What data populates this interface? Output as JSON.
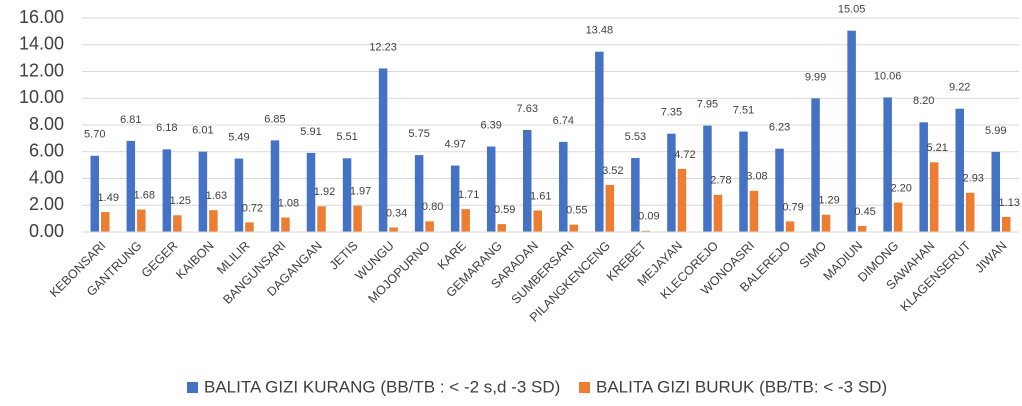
{
  "chart_data": {
    "type": "bar",
    "categories": [
      "KEBONSARI",
      "GANTRUNG",
      "GEGER",
      "KAIBON",
      "MLILIR",
      "BANGUNSARI",
      "DAGANGAN",
      "JETIS",
      "WUNGU",
      "MOJOPURNO",
      "KARE",
      "GEMARANG",
      "SARADAN",
      "SUMBERSARI",
      "PILANGKENCENG",
      "KREBET",
      "MEJAYAN",
      "KLECOREJO",
      "WONOASRI",
      "BALEREJO",
      "SIMO",
      "MADIUN",
      "DIMONG",
      "SAWAHAN",
      "KLAGENSERUT",
      "JIWAN"
    ],
    "series": [
      {
        "name": "BALITA GIZI KURANG (BB/TB : < -2 s,d -3 SD)",
        "color": "#4472c4",
        "values": [
          5.7,
          6.81,
          6.18,
          6.01,
          5.49,
          6.85,
          5.91,
          5.51,
          12.23,
          5.75,
          4.97,
          6.39,
          7.63,
          6.74,
          13.48,
          5.53,
          7.35,
          7.95,
          7.51,
          6.23,
          9.99,
          15.05,
          10.06,
          8.2,
          9.22,
          5.99
        ],
        "value_labels": [
          "5.70",
          "6.81",
          "6.18",
          "6.01",
          "5.49",
          "6.85",
          "5.91",
          "5.51",
          "12.23",
          "5.75",
          "4.97",
          "6.39",
          "7.63",
          "6.74",
          "13.48",
          "5.53",
          "7.35",
          "7.95",
          "7.51",
          "6.23",
          "9.99",
          "15.05",
          "10.06",
          "8.20",
          "9.22",
          "5.99"
        ]
      },
      {
        "name": "BALITA GIZI BURUK (BB/TB: < -3 SD)",
        "color": "#ed7d31",
        "values": [
          1.49,
          1.68,
          1.25,
          1.63,
          0.72,
          1.08,
          1.92,
          1.97,
          0.34,
          0.8,
          1.71,
          0.59,
          1.61,
          0.55,
          3.52,
          0.09,
          4.72,
          2.78,
          3.08,
          0.79,
          1.29,
          0.45,
          2.2,
          5.21,
          2.93,
          1.13
        ],
        "value_labels": [
          "1.49",
          "1.68",
          "1.25",
          "1.63",
          "0.72",
          "1.08",
          "1.92",
          "1.97",
          "0.34",
          "0.80",
          "1.71",
          "0.59",
          "1.61",
          "0.55",
          "3.52",
          "0.09",
          "4.72",
          "2.78",
          "3.08",
          "0.79",
          "1.29",
          "0.45",
          "2.20",
          "5.21",
          "2.93",
          "1.13"
        ]
      }
    ],
    "ylim": [
      0,
      16
    ],
    "yticks": [
      {
        "value": 0,
        "label": "0.00"
      },
      {
        "value": 2,
        "label": "2.00"
      },
      {
        "value": 4,
        "label": "4.00"
      },
      {
        "value": 6,
        "label": "6.00"
      },
      {
        "value": 8,
        "label": "8.00"
      },
      {
        "value": 10,
        "label": "10.00"
      },
      {
        "value": 12,
        "label": "12.00"
      },
      {
        "value": 14,
        "label": "14.00"
      },
      {
        "value": 16,
        "label": "16.00"
      }
    ],
    "grid": true
  }
}
